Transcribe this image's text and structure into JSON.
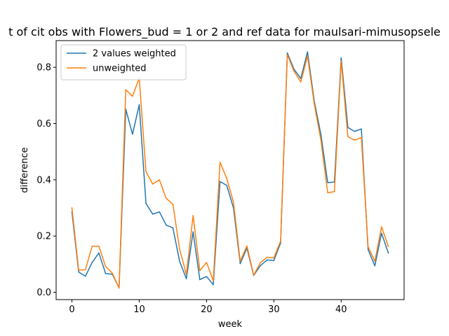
{
  "chart_data": {
    "type": "line",
    "title": "t of cit obs with Flowers_bud = 1 or 2 and ref data for maulsari-mimusopsele",
    "xlabel": "week",
    "ylabel": "difference",
    "xlim": [
      -2.35,
      49.35
    ],
    "ylim": [
      -0.026,
      0.895
    ],
    "xticks": [
      0,
      10,
      20,
      30,
      40
    ],
    "xtick_labels": [
      "0",
      "10",
      "20",
      "30",
      "40"
    ],
    "yticks": [
      0.0,
      0.2,
      0.4,
      0.6,
      0.8
    ],
    "ytick_labels": [
      "0.0",
      "0.2",
      "0.4",
      "0.6",
      "0.8"
    ],
    "grid": false,
    "legend_position": "top-left",
    "x": [
      0,
      1,
      2,
      3,
      4,
      5,
      6,
      7,
      8,
      9,
      10,
      11,
      12,
      13,
      14,
      15,
      16,
      17,
      18,
      19,
      20,
      21,
      22,
      23,
      24,
      25,
      26,
      27,
      28,
      29,
      30,
      31,
      32,
      33,
      34,
      35,
      36,
      37,
      38,
      39,
      40,
      41,
      42,
      43,
      44,
      45,
      46,
      47
    ],
    "series": [
      {
        "name": "2 values weighted",
        "color": "#1f77b4",
        "values": [
          0.285,
          0.072,
          0.057,
          0.106,
          0.14,
          0.067,
          0.064,
          0.016,
          0.651,
          0.562,
          0.667,
          0.316,
          0.278,
          0.286,
          0.239,
          0.229,
          0.11,
          0.048,
          0.215,
          0.045,
          0.056,
          0.027,
          0.394,
          0.38,
          0.3,
          0.102,
          0.157,
          0.06,
          0.095,
          0.115,
          0.113,
          0.175,
          0.851,
          0.793,
          0.76,
          0.855,
          0.68,
          0.56,
          0.39,
          0.392,
          0.834,
          0.586,
          0.572,
          0.581,
          0.152,
          0.094,
          0.21,
          0.14
        ]
      },
      {
        "name": "unweighted",
        "color": "#ff7f0e",
        "values": [
          0.3,
          0.079,
          0.08,
          0.164,
          0.164,
          0.092,
          0.068,
          0.015,
          0.72,
          0.697,
          0.762,
          0.429,
          0.385,
          0.4,
          0.334,
          0.313,
          0.153,
          0.063,
          0.273,
          0.077,
          0.106,
          0.041,
          0.462,
          0.405,
          0.32,
          0.11,
          0.165,
          0.061,
          0.105,
          0.125,
          0.122,
          0.182,
          0.845,
          0.786,
          0.748,
          0.84,
          0.67,
          0.54,
          0.354,
          0.358,
          0.822,
          0.553,
          0.541,
          0.55,
          0.162,
          0.11,
          0.233,
          0.163
        ]
      }
    ]
  }
}
